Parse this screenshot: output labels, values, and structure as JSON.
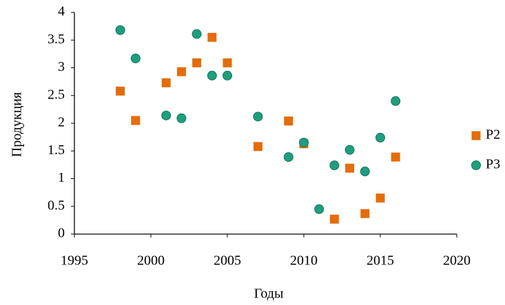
{
  "chart_data": {
    "type": "scatter",
    "x_label": "Годы",
    "y_label": "Продукция",
    "x": [
      1998,
      1999,
      2001,
      2002,
      2003,
      2004,
      2005,
      2007,
      2009,
      2010,
      2011,
      2012,
      2013,
      2014,
      2015,
      2016
    ],
    "series": [
      {
        "name": "P2",
        "color": "#e46c0a",
        "marker": "square",
        "values": [
          2.58,
          2.05,
          2.73,
          2.93,
          3.09,
          3.55,
          3.09,
          1.58,
          2.04,
          1.63,
          null,
          0.27,
          1.19,
          0.37,
          0.65,
          1.39
        ]
      },
      {
        "name": "P3",
        "color": "#1f9e7e",
        "marker": "circle",
        "values": [
          3.68,
          3.17,
          2.14,
          2.09,
          3.61,
          2.86,
          2.86,
          2.12,
          1.39,
          1.65,
          0.45,
          1.24,
          1.52,
          1.13,
          1.74,
          2.4
        ]
      }
    ],
    "xlim": [
      1995,
      2020
    ],
    "xticks": [
      1995,
      2000,
      2005,
      2010,
      2015,
      2020
    ],
    "ylim": [
      0,
      4
    ],
    "yticks": [
      0,
      0.5,
      1,
      1.5,
      2,
      2.5,
      3,
      3.5,
      4
    ],
    "grid": false,
    "legend": "right"
  }
}
